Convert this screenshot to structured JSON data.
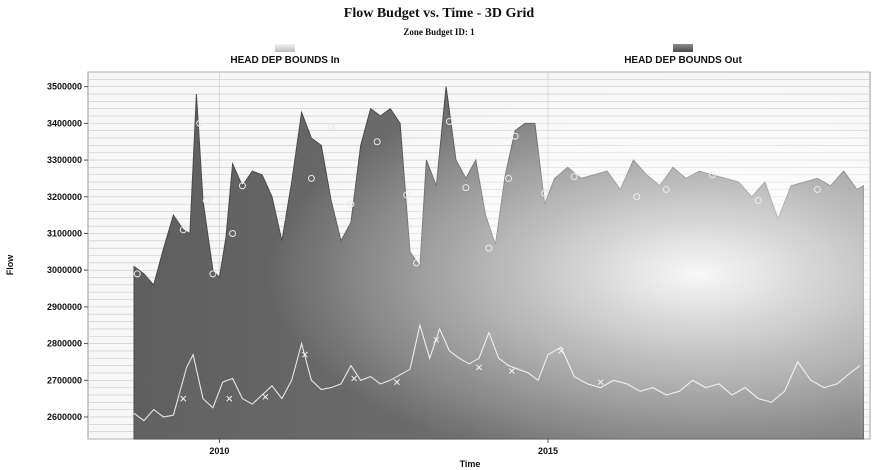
{
  "chart_data": {
    "type": "area",
    "title": "Flow Budget vs. Time - 3D Grid",
    "subtitle": "Zone Budget ID: 1",
    "xlabel": "Time",
    "ylabel": "Flow",
    "ylim": [
      2540000,
      3540000
    ],
    "xlim": [
      2008.0,
      2019.9
    ],
    "x_ticks": [
      2010,
      2015
    ],
    "y_ticks": [
      2600000,
      2700000,
      2800000,
      2900000,
      3000000,
      3100000,
      3200000,
      3300000,
      3400000,
      3500000
    ],
    "grid": true,
    "legend_position": "top",
    "colors": {
      "in_series": "#d0d0d0",
      "out_series": "#5a5a5a",
      "plot_background": "#f7f7f7"
    },
    "series": [
      {
        "name": "HEAD DEP BOUNDS In",
        "marker": "x",
        "x": [
          2008.7,
          2008.85,
          2009.0,
          2009.15,
          2009.3,
          2009.5,
          2009.6,
          2009.75,
          2009.9,
          2010.05,
          2010.2,
          2010.35,
          2010.5,
          2010.65,
          2010.8,
          2010.95,
          2011.1,
          2011.25,
          2011.4,
          2011.55,
          2011.7,
          2011.85,
          2012.0,
          2012.15,
          2012.3,
          2012.45,
          2012.6,
          2012.75,
          2012.9,
          2013.05,
          2013.2,
          2013.35,
          2013.5,
          2013.65,
          2013.8,
          2013.95,
          2014.1,
          2014.25,
          2014.4,
          2014.55,
          2014.7,
          2014.85,
          2015.0,
          2015.2,
          2015.4,
          2015.6,
          2015.8,
          2016.0,
          2016.2,
          2016.4,
          2016.6,
          2016.8,
          2017.0,
          2017.2,
          2017.4,
          2017.6,
          2017.8,
          2018.0,
          2018.2,
          2018.4,
          2018.6,
          2018.8,
          2019.0,
          2019.2,
          2019.4,
          2019.6,
          2019.75
        ],
        "values": [
          2610000,
          2590000,
          2620000,
          2600000,
          2605000,
          2735000,
          2770000,
          2650000,
          2625000,
          2695000,
          2705000,
          2650000,
          2635000,
          2660000,
          2685000,
          2650000,
          2700000,
          2800000,
          2700000,
          2675000,
          2680000,
          2690000,
          2740000,
          2700000,
          2710000,
          2690000,
          2700000,
          2715000,
          2730000,
          2850000,
          2760000,
          2840000,
          2780000,
          2760000,
          2745000,
          2760000,
          2830000,
          2760000,
          2740000,
          2730000,
          2720000,
          2700000,
          2770000,
          2790000,
          2710000,
          2690000,
          2680000,
          2700000,
          2690000,
          2670000,
          2680000,
          2660000,
          2670000,
          2700000,
          2680000,
          2690000,
          2660000,
          2680000,
          2650000,
          2640000,
          2670000,
          2750000,
          2700000,
          2680000,
          2690000,
          2720000,
          2740000
        ]
      },
      {
        "name": "HEAD DEP BOUNDS Out",
        "marker": "o",
        "x": [
          2008.7,
          2008.85,
          2009.0,
          2009.15,
          2009.3,
          2009.45,
          2009.55,
          2009.65,
          2009.75,
          2009.9,
          2010.0,
          2010.1,
          2010.2,
          2010.35,
          2010.5,
          2010.65,
          2010.8,
          2010.95,
          2011.1,
          2011.25,
          2011.4,
          2011.55,
          2011.7,
          2011.85,
          2012.0,
          2012.15,
          2012.3,
          2012.45,
          2012.6,
          2012.75,
          2012.9,
          2013.05,
          2013.15,
          2013.3,
          2013.45,
          2013.6,
          2013.75,
          2013.9,
          2014.05,
          2014.2,
          2014.35,
          2014.5,
          2014.65,
          2014.8,
          2014.95,
          2015.1,
          2015.3,
          2015.5,
          2015.7,
          2015.9,
          2016.1,
          2016.3,
          2016.5,
          2016.7,
          2016.9,
          2017.1,
          2017.3,
          2017.5,
          2017.7,
          2017.9,
          2018.1,
          2018.3,
          2018.5,
          2018.7,
          2018.9,
          2019.1,
          2019.3,
          2019.5,
          2019.7,
          2019.8
        ],
        "values": [
          3010000,
          2990000,
          2960000,
          3060000,
          3150000,
          3110000,
          3100000,
          3480000,
          3190000,
          3000000,
          2980000,
          3090000,
          3290000,
          3230000,
          3270000,
          3260000,
          3200000,
          3080000,
          3240000,
          3430000,
          3360000,
          3340000,
          3190000,
          3080000,
          3130000,
          3340000,
          3440000,
          3420000,
          3440000,
          3400000,
          3050000,
          3010000,
          3300000,
          3230000,
          3500000,
          3300000,
          3250000,
          3300000,
          3150000,
          3070000,
          3260000,
          3380000,
          3400000,
          3400000,
          3180000,
          3250000,
          3280000,
          3250000,
          3260000,
          3270000,
          3220000,
          3300000,
          3260000,
          3230000,
          3280000,
          3250000,
          3270000,
          3260000,
          3250000,
          3240000,
          3200000,
          3240000,
          3140000,
          3230000,
          3240000,
          3250000,
          3230000,
          3270000,
          3220000,
          3230000
        ]
      }
    ],
    "markers": {
      "in": {
        "x": [
          2009.45,
          2010.15,
          2010.7,
          2011.3,
          2012.05,
          2012.7,
          2013.3,
          2013.95,
          2014.45,
          2015.2,
          2015.8
        ],
        "values": [
          2650000,
          2650000,
          2655000,
          2770000,
          2705000,
          2695000,
          2810000,
          2735000,
          2725000,
          2780000,
          2695000
        ]
      },
      "out": {
        "x": [
          2008.75,
          2009.45,
          2009.7,
          2009.8,
          2009.9,
          2010.2,
          2010.35,
          2010.95,
          2011.4,
          2011.7,
          2012.0,
          2012.4,
          2012.85,
          2013.0,
          2013.5,
          2013.75,
          2014.1,
          2014.4,
          2014.5,
          2014.95,
          2015.4,
          2016.35,
          2016.8,
          2017.5,
          2018.2,
          2019.1
        ],
        "values": [
          2990000,
          3110000,
          3400000,
          3190000,
          2990000,
          3100000,
          3230000,
          3140000,
          3250000,
          3390000,
          3180000,
          3350000,
          3205000,
          3020000,
          3405000,
          3225000,
          3060000,
          3250000,
          3365000,
          3210000,
          3255000,
          3200000,
          3220000,
          3260000,
          3190000,
          3220000
        ]
      }
    }
  }
}
